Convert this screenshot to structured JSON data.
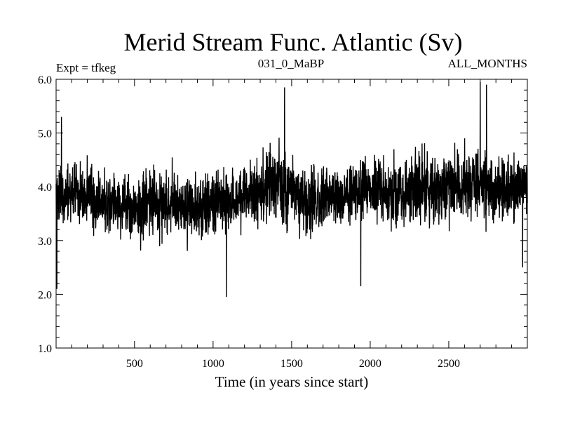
{
  "chart_data": {
    "type": "line",
    "title": "Merid Stream Func. Atlantic (Sv)",
    "subtitle_left": "Expt = tfkeg",
    "subtitle_center": "031_0_MaBP",
    "subtitle_right": "ALL_MONTHS",
    "xlabel": "Time (in years since start)",
    "ylabel": "",
    "xlim": [
      1,
      3000
    ],
    "ylim": [
      1.0,
      6.0
    ],
    "x_ticks": [
      500,
      1000,
      1500,
      2000,
      2500
    ],
    "x_tick_labels": [
      "500",
      "1000",
      "1500",
      "2000",
      "2500"
    ],
    "y_ticks": [
      1.0,
      2.0,
      3.0,
      4.0,
      5.0,
      6.0
    ],
    "y_tick_labels": [
      "1.0",
      "2.0",
      "3.0",
      "4.0",
      "5.0",
      "6.0"
    ],
    "grid": false,
    "legend": "none",
    "line_color": "#000000",
    "series": [
      {
        "x": [
          1,
          100,
          200,
          300,
          400,
          500,
          600,
          700,
          800,
          900,
          1000,
          1100,
          1200,
          1300,
          1400,
          1500,
          1600,
          1700,
          1800,
          1900,
          2000,
          2100,
          2200,
          2300,
          2400,
          2500,
          2600,
          2700,
          2800,
          2900,
          3000
        ],
        "values": [
          3.8,
          3.9,
          3.8,
          3.7,
          3.7,
          3.6,
          3.7,
          3.7,
          3.6,
          3.6,
          3.7,
          3.7,
          3.8,
          3.9,
          4.1,
          3.9,
          3.7,
          3.8,
          3.8,
          3.9,
          4.0,
          3.9,
          3.9,
          4.0,
          4.0,
          4.1,
          4.0,
          4.1,
          3.9,
          4.0,
          4.0
        ],
        "amplitude": [
          0.5,
          0.5,
          0.5,
          0.5,
          0.5,
          0.5,
          0.5,
          0.5,
          0.5,
          0.5,
          0.5,
          0.5,
          0.5,
          0.6,
          0.7,
          0.6,
          0.5,
          0.5,
          0.5,
          0.5,
          0.5,
          0.5,
          0.5,
          0.6,
          0.6,
          0.6,
          0.5,
          0.6,
          0.5,
          0.5,
          0.5
        ],
        "extremes": [
          {
            "x": 6,
            "value": 2.1
          },
          {
            "x": 35,
            "value": 5.3
          },
          {
            "x": 1085,
            "value": 1.95
          },
          {
            "x": 1455,
            "value": 5.85
          },
          {
            "x": 1940,
            "value": 2.15
          },
          {
            "x": 2700,
            "value": 5.95
          },
          {
            "x": 2740,
            "value": 5.9
          },
          {
            "x": 2970,
            "value": 2.5
          }
        ]
      }
    ]
  }
}
